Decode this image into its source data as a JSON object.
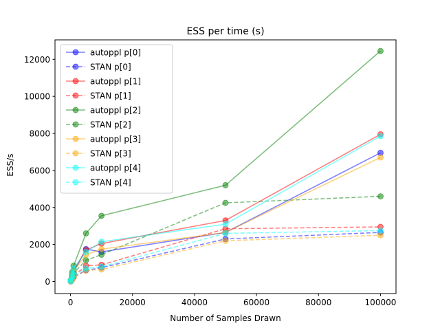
{
  "chart_data": {
    "type": "line",
    "title": "ESS per time (s)",
    "xlabel": "Number of Samples Drawn",
    "ylabel": "ESS/s",
    "xlim": [
      -5000,
      105000
    ],
    "ylim": [
      -650,
      13050
    ],
    "xticks": [
      0,
      20000,
      40000,
      60000,
      80000,
      100000
    ],
    "yticks": [
      0,
      2000,
      4000,
      6000,
      8000,
      10000,
      12000
    ],
    "grid": false,
    "legend_position": "top-left",
    "x": [
      100,
      500,
      1000,
      5000,
      10000,
      50000,
      100000
    ],
    "series": [
      {
        "name": "autoppl p[0]",
        "color": "#0000ff",
        "dash": false,
        "values": [
          40,
          300,
          500,
          1750,
          1600,
          2650,
          6950
        ]
      },
      {
        "name": "STAN p[0]",
        "color": "#0000ff",
        "dash": true,
        "values": [
          10,
          100,
          250,
          600,
          750,
          2300,
          2650
        ]
      },
      {
        "name": "autoppl p[1]",
        "color": "#ff0000",
        "dash": false,
        "values": [
          60,
          400,
          600,
          1700,
          2050,
          3300,
          7950
        ]
      },
      {
        "name": "STAN p[1]",
        "color": "#ff0000",
        "dash": true,
        "values": [
          20,
          150,
          300,
          850,
          900,
          2850,
          2950
        ]
      },
      {
        "name": "autoppl p[2]",
        "color": "#008000",
        "dash": false,
        "values": [
          80,
          500,
          850,
          2600,
          3550,
          5200,
          12450
        ]
      },
      {
        "name": "STAN p[2]",
        "color": "#008000",
        "dash": true,
        "values": [
          30,
          250,
          450,
          1150,
          1450,
          4250,
          4600
        ]
      },
      {
        "name": "autoppl p[3]",
        "color": "#ffa500",
        "dash": false,
        "values": [
          50,
          350,
          550,
          1450,
          1750,
          2650,
          6700
        ]
      },
      {
        "name": "STAN p[3]",
        "color": "#ffa500",
        "dash": true,
        "values": [
          15,
          100,
          200,
          600,
          650,
          2200,
          2500
        ]
      },
      {
        "name": "autoppl p[4]",
        "color": "#00ffff",
        "dash": false,
        "values": [
          70,
          450,
          700,
          1600,
          2150,
          3100,
          7850
        ]
      },
      {
        "name": "STAN p[4]",
        "color": "#00ffff",
        "dash": true,
        "values": [
          25,
          200,
          350,
          700,
          800,
          2600,
          2750
        ]
      }
    ]
  }
}
